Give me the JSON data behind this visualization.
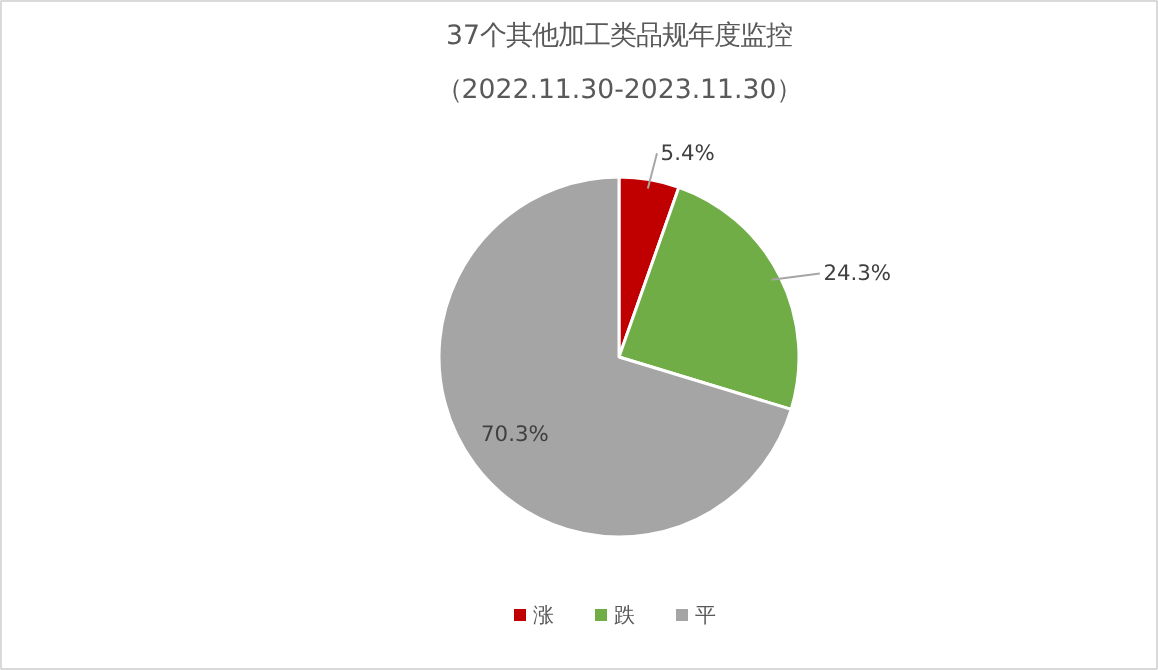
{
  "chart_data": {
    "type": "pie",
    "title": "37个其他加工类品规年度监控",
    "subtitle": "（2022.11.30-2023.11.30）",
    "categories": [
      "涨",
      "跌",
      "平"
    ],
    "values": [
      5.4,
      24.3,
      70.3
    ],
    "colors": [
      "#c00000",
      "#70ad47",
      "#a5a5a5"
    ],
    "value_labels": [
      "5.4%",
      "24.3%",
      "70.3%"
    ],
    "legend": "bottom"
  }
}
